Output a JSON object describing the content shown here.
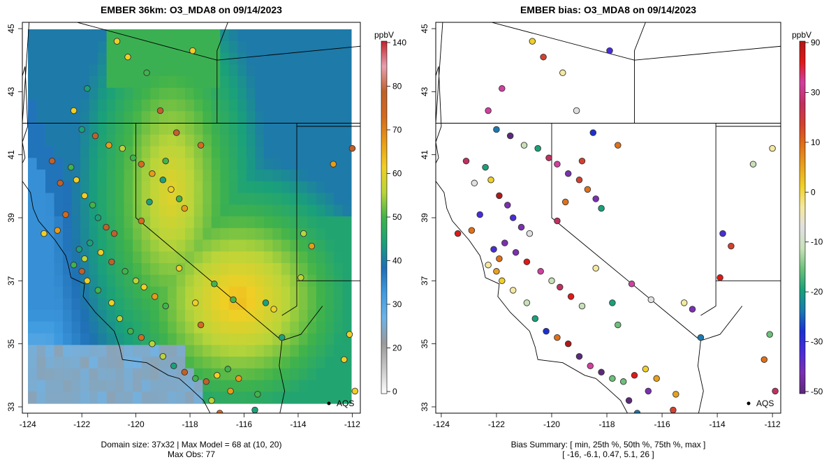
{
  "panels": [
    {
      "id": "model",
      "title": "EMBER 36km: O3_MDA8 on 09/14/2023",
      "caption_line1": "Domain size: 37x32 | Max Model = 68 at (10, 20)",
      "caption_line2": "Max Obs: 77",
      "legend_label": "AQS",
      "colorbar": {
        "unit": "ppbV",
        "ticks": [
          "140",
          "80",
          "70",
          "60",
          "50",
          "40",
          "30",
          "20",
          "0"
        ],
        "stops": [
          "#ffffff",
          "#c8c8c8",
          "#9a9a9a",
          "#6fb3e6",
          "#3f9be0",
          "#1f6fb5",
          "#1aa17a",
          "#41b34a",
          "#b9d53a",
          "#f0cf25",
          "#e89c16",
          "#d46a1e",
          "#c0602a",
          "#e8a0b0",
          "#c0242a"
        ]
      }
    },
    {
      "id": "bias",
      "title": "EMBER bias: O3_MDA8 on 09/14/2023",
      "caption_line1": "Bias Summary: [ min, 25th %, 50th %, 75th %, max ]",
      "caption_line2": "[ -16,   -6.1,   0.47,   5.1,   26 ]",
      "legend_label": "AQS",
      "colorbar": {
        "unit": "ppbV",
        "ticks": [
          "90",
          "30",
          "10",
          "0",
          "-10",
          "-20",
          "-30",
          "-50"
        ],
        "stops": [
          "#5a2a7a",
          "#7a30b0",
          "#4a2cd8",
          "#1c30d0",
          "#1a7ab0",
          "#1aa07a",
          "#6cc07a",
          "#c8e0b8",
          "#e0e0e0",
          "#f5e8a0",
          "#f0d02a",
          "#e8a020",
          "#e07018",
          "#d44030",
          "#c03060",
          "#d040a0",
          "#e01818",
          "#b01818"
        ]
      }
    }
  ],
  "axes": {
    "x_ticks": [
      "-124",
      "-122",
      "-120",
      "-118",
      "-116",
      "-114",
      "-112"
    ],
    "y_ticks": [
      "33",
      "35",
      "37",
      "39",
      "41",
      "43",
      "45"
    ],
    "xlim": [
      -124.2,
      -111.7
    ],
    "ylim": [
      32.8,
      45.2
    ]
  },
  "bias_summary": {
    "min": -16,
    "p25": -6.1,
    "p50": 0.47,
    "p75": 5.1,
    "max": 26
  }
}
